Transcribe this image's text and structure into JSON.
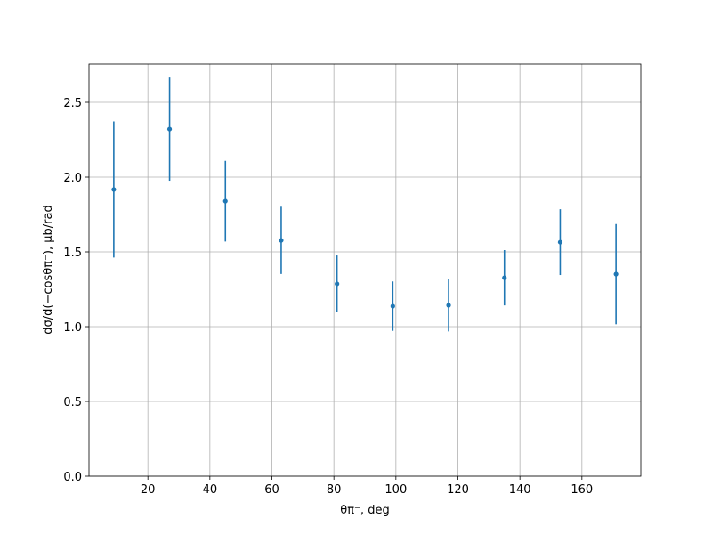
{
  "chart_data": {
    "type": "errorbar",
    "x_label": "θπ⁻, deg",
    "y_label": "dσ/d(−cosθπ⁻), μb/rad",
    "x": [
      9,
      27,
      45,
      63,
      81,
      99,
      117,
      135,
      153,
      171
    ],
    "values": [
      1.917,
      2.321,
      1.839,
      1.577,
      1.286,
      1.137,
      1.143,
      1.327,
      1.565,
      1.351
    ],
    "errors": [
      0.455,
      0.345,
      0.27,
      0.225,
      0.19,
      0.165,
      0.175,
      0.185,
      0.22,
      0.335
    ],
    "color": "#1f77b4",
    "xlim": [
      1,
      179
    ],
    "ylim": [
      0,
      2.756
    ],
    "xticks": [
      20,
      40,
      60,
      80,
      100,
      120,
      140,
      160
    ],
    "yticks": [
      {
        "value": 0,
        "label": "0.0"
      },
      {
        "value": 0.5,
        "label": "0.5"
      },
      {
        "value": 1,
        "label": "1.0"
      },
      {
        "value": 1.5,
        "label": "1.5"
      },
      {
        "value": 2,
        "label": "2.0"
      },
      {
        "value": 2.5,
        "label": "2.5"
      }
    ],
    "grid": true
  }
}
